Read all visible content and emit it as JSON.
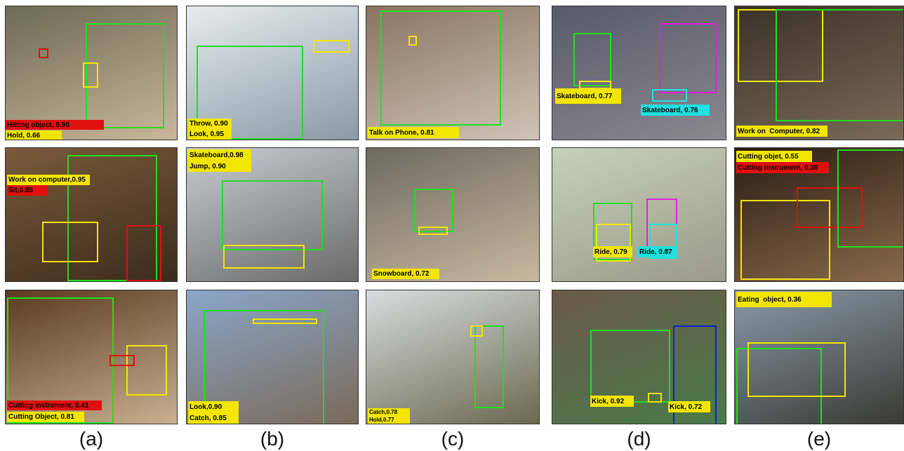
{
  "columns": [
    {
      "caption": "(a)",
      "panels": [
        {
          "labels": [
            "Hitting object, 0.90",
            "Hold, 0.66"
          ]
        },
        {
          "labels": [
            "Work on computer,0.95",
            "Sit,0.85"
          ]
        },
        {
          "labels": [
            "Cutting instrument, 0.41",
            "Cutting Object, 0.81"
          ]
        }
      ]
    },
    {
      "caption": "(b)",
      "panels": [
        {
          "labels": [
            "Throw, 0.90",
            "Look, 0.95"
          ]
        },
        {
          "labels": [
            "Skateboard,0.98",
            "Jump, 0.90"
          ]
        },
        {
          "labels": [
            "Look,0.90",
            "Catch, 0.85"
          ]
        }
      ]
    },
    {
      "caption": "(c)",
      "panels": [
        {
          "labels": [
            "Talk on Phone, 0.81"
          ]
        },
        {
          "labels": [
            "Snowboard, 0.72"
          ]
        },
        {
          "labels": [
            "Catch,0.78",
            "Hold,0.77"
          ]
        }
      ]
    },
    {
      "caption": "(d)",
      "panels": [
        {
          "labels": [
            "Skateboard, 0.77",
            "Skateboard, 0.76"
          ]
        },
        {
          "labels": [
            "Ride, 0.79",
            "Ride, 0.87"
          ]
        },
        {
          "labels": [
            "Kick, 0.92",
            "Kick, 0.72"
          ]
        }
      ]
    },
    {
      "caption": "(e)",
      "panels": [
        {
          "labels": [
            "Work on  Computer, 0.82"
          ]
        },
        {
          "labels": [
            "Cutting objet, 0.55",
            "Cutting instrument, 0.38"
          ]
        },
        {
          "labels": [
            "Eating  object, 0.36"
          ]
        }
      ]
    }
  ]
}
